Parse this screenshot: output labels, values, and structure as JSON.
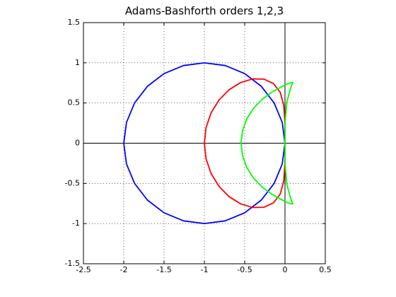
{
  "chart_data": {
    "type": "line",
    "title": "Adams-Bashforth orders 1,2,3",
    "xlim": [
      -2.5,
      0.5
    ],
    "ylim": [
      -1.5,
      1.5
    ],
    "xticks": [
      -2.5,
      -2,
      -1.5,
      -1,
      -0.5,
      0,
      0.5
    ],
    "yticks": [
      -1.5,
      -1,
      -0.5,
      0,
      0.5,
      1,
      1.5
    ],
    "grid": true,
    "series": [
      {
        "color": "#0000ff",
        "x": [
          0,
          -0.034,
          -0.134,
          -0.293,
          -0.5,
          -0.741,
          -1,
          -1.259,
          -1.5,
          -1.707,
          -1.866,
          -1.966,
          -2,
          -1.966,
          -1.866,
          -1.707,
          -1.5,
          -1.259,
          -1,
          -0.741,
          -0.5,
          -0.293,
          -0.134,
          -0.034,
          0
        ],
        "y": [
          0,
          0.259,
          0.5,
          0.707,
          0.866,
          0.966,
          1,
          0.966,
          0.866,
          0.707,
          0.5,
          0.259,
          0,
          -0.259,
          -0.5,
          -0.707,
          -0.866,
          -0.966,
          -1,
          -0.966,
          -0.866,
          -0.707,
          -0.5,
          -0.259,
          0
        ]
      },
      {
        "color": "#ff0000",
        "x": [
          0,
          -0.001,
          -0.015,
          -0.06,
          -0.143,
          -0.26,
          -0.4,
          -0.549,
          -0.692,
          -0.818,
          -0.917,
          -0.979,
          -1,
          -0.979,
          -0.917,
          -0.818,
          -0.692,
          -0.549,
          -0.4,
          -0.26,
          -0.143,
          -0.06,
          -0.015,
          -0.001,
          0
        ],
        "y": [
          0,
          0.254,
          0.472,
          0.635,
          0.742,
          0.797,
          0.8,
          0.755,
          0.666,
          0.538,
          0.377,
          0.194,
          0,
          -0.194,
          -0.377,
          -0.538,
          -0.666,
          -0.755,
          -0.8,
          -0.797,
          -0.742,
          -0.635,
          -0.472,
          -0.254,
          0
        ]
      },
      {
        "color": "#00ff00",
        "x": [
          0,
          0.002,
          0.022,
          0.071,
          0.097,
          0.055,
          -0.041,
          -0.162,
          -0.283,
          -0.391,
          -0.475,
          -0.527,
          -0.545,
          -0.527,
          -0.475,
          -0.391,
          -0.283,
          -0.162,
          -0.041,
          0.055,
          0.097,
          0.071,
          0.022,
          0.002,
          0
        ],
        "y": [
          0,
          0.261,
          0.508,
          0.688,
          0.757,
          0.748,
          0.703,
          0.636,
          0.546,
          0.433,
          0.301,
          0.154,
          0,
          -0.154,
          -0.301,
          -0.433,
          -0.546,
          -0.636,
          -0.703,
          -0.748,
          -0.757,
          -0.688,
          -0.508,
          -0.261,
          0
        ]
      }
    ]
  }
}
